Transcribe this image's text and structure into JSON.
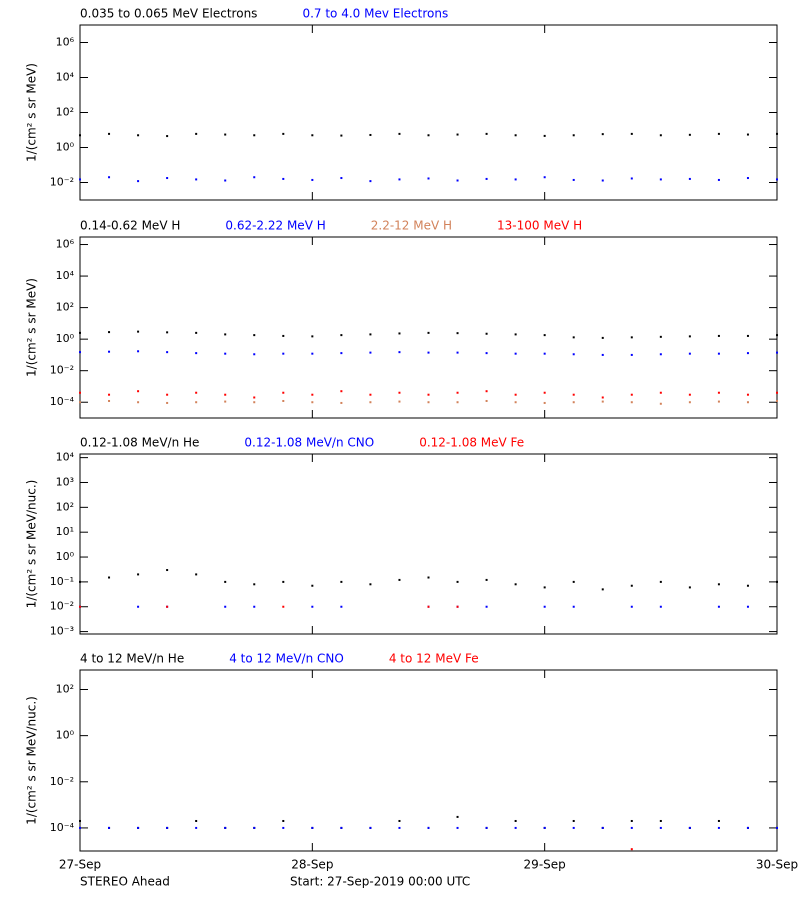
{
  "time_axis": {
    "xlim": [
      0,
      72
    ],
    "xticks": [
      {
        "value": 0,
        "label": "27-Sep"
      },
      {
        "value": 24,
        "label": "28-Sep"
      },
      {
        "value": 48,
        "label": "29-Sep"
      },
      {
        "value": 72,
        "label": "30-Sep"
      }
    ]
  },
  "footer": {
    "left": "STEREO Ahead",
    "center": "Start: 27-Sep-2019 00:00 UTC"
  },
  "chart_data": [
    {
      "type": "scatter",
      "ylog": true,
      "ylabel": "1/(cm² s sr MeV)",
      "ylim": [
        0.001,
        10000000
      ],
      "yticks": [
        {
          "value": 0.01,
          "label": "10⁻²"
        },
        {
          "value": 1,
          "label": "10⁰"
        },
        {
          "value": 100,
          "label": "10²"
        },
        {
          "value": 10000,
          "label": "10⁴"
        },
        {
          "value": 1000000,
          "label": "10⁶"
        }
      ],
      "x": [
        0,
        3,
        6,
        9,
        12,
        15,
        18,
        21,
        24,
        27,
        30,
        33,
        36,
        39,
        42,
        45,
        48,
        51,
        54,
        57,
        60,
        63,
        66,
        69,
        72
      ],
      "series": [
        {
          "name": "0.035 to 0.065 MeV Electrons",
          "color": "#000000",
          "values": [
            5,
            6,
            5,
            4.5,
            6,
            5.5,
            5,
            6,
            5,
            4.8,
            5.2,
            6,
            5,
            5.5,
            6,
            5,
            4.6,
            5,
            5.8,
            6,
            5,
            5.3,
            6,
            5.5,
            6
          ]
        },
        {
          "name": "0.7 to 4.0 Mev Electrons",
          "color": "#0000ff",
          "values": [
            0.015,
            0.02,
            0.012,
            0.018,
            0.015,
            0.013,
            0.02,
            0.016,
            0.014,
            0.018,
            0.012,
            0.015,
            0.017,
            0.013,
            0.016,
            0.015,
            0.02,
            0.014,
            0.013,
            0.017,
            0.015,
            0.016,
            0.014,
            0.018,
            0.015
          ]
        }
      ]
    },
    {
      "type": "scatter",
      "ylog": true,
      "ylabel": "1/(cm² s sr MeV)",
      "ylim": [
        1e-05,
        3000000
      ],
      "yticks": [
        {
          "value": 0.0001,
          "label": "10⁻⁴"
        },
        {
          "value": 0.01,
          "label": "10⁻²"
        },
        {
          "value": 1,
          "label": "10⁰"
        },
        {
          "value": 100,
          "label": "10²"
        },
        {
          "value": 10000,
          "label": "10⁴"
        },
        {
          "value": 1000000,
          "label": "10⁶"
        }
      ],
      "x": [
        0,
        3,
        6,
        9,
        12,
        15,
        18,
        21,
        24,
        27,
        30,
        33,
        36,
        39,
        42,
        45,
        48,
        51,
        54,
        57,
        60,
        63,
        66,
        69,
        72
      ],
      "series": [
        {
          "name": "0.14-0.62 MeV H",
          "color": "#000000",
          "values": [
            2.5,
            2.8,
            3,
            2.7,
            2.5,
            2,
            1.8,
            1.6,
            1.5,
            1.8,
            2,
            2.3,
            2.5,
            2.4,
            2.2,
            2,
            1.8,
            1.3,
            1.2,
            1.3,
            1.4,
            1.5,
            1.6,
            1.6,
            1.8
          ]
        },
        {
          "name": "0.62-2.22 MeV H",
          "color": "#0000ff",
          "values": [
            0.15,
            0.16,
            0.17,
            0.15,
            0.13,
            0.12,
            0.11,
            0.12,
            0.12,
            0.13,
            0.14,
            0.15,
            0.14,
            0.14,
            0.13,
            0.12,
            0.12,
            0.11,
            0.1,
            0.1,
            0.11,
            0.12,
            0.12,
            0.13,
            0.14
          ]
        },
        {
          "name": "2.2-12 MeV H",
          "color": "#d2825a",
          "values": [
            0.0001,
            0.00012,
            0.0001,
            9e-05,
            0.0001,
            0.00011,
            0.0001,
            0.00012,
            0.0001,
            9e-05,
            0.0001,
            0.00011,
            0.0001,
            0.0001,
            0.00012,
            0.0001,
            9e-05,
            0.0001,
            0.00011,
            0.0001,
            8e-05,
            0.0001,
            0.00011,
            0.0001,
            0.00012
          ]
        },
        {
          "name": "13-100 MeV H",
          "color": "#ff0000",
          "values": [
            0.0004,
            0.0003,
            0.0005,
            0.0003,
            0.0004,
            0.0003,
            0.0002,
            0.0004,
            0.0003,
            0.0005,
            0.0003,
            0.0004,
            0.0003,
            0.0004,
            0.0005,
            0.0003,
            0.0004,
            0.0003,
            0.0002,
            0.0003,
            0.0004,
            0.0003,
            0.0004,
            0.0003,
            0.0004
          ]
        }
      ]
    },
    {
      "type": "scatter",
      "ylog": true,
      "ylabel": "1/(cm² s sr MeV/nuc.)",
      "ylim": [
        0.0008,
        14000
      ],
      "yticks": [
        {
          "value": 0.001,
          "label": "10⁻³"
        },
        {
          "value": 0.01,
          "label": "10⁻²"
        },
        {
          "value": 0.1,
          "label": "10⁻¹"
        },
        {
          "value": 1,
          "label": "10⁰"
        },
        {
          "value": 10,
          "label": "10¹"
        },
        {
          "value": 100,
          "label": "10²"
        },
        {
          "value": 1000,
          "label": "10³"
        },
        {
          "value": 10000,
          "label": "10⁴"
        }
      ],
      "x": [
        0,
        3,
        6,
        9,
        12,
        15,
        18,
        21,
        24,
        27,
        30,
        33,
        36,
        39,
        42,
        45,
        48,
        51,
        54,
        57,
        60,
        63,
        66,
        69,
        72
      ],
      "series": [
        {
          "name": "0.12-1.08 MeV/n He",
          "color": "#000000",
          "values": [
            0.1,
            0.15,
            0.2,
            0.3,
            0.2,
            0.1,
            0.08,
            0.1,
            0.07,
            0.1,
            0.08,
            0.12,
            0.15,
            0.1,
            0.12,
            0.08,
            0.06,
            0.1,
            0.05,
            0.07,
            0.1,
            0.06,
            0.08,
            0.07,
            0.1
          ]
        },
        {
          "name": "0.12-1.08 MeV/n CNO",
          "color": "#0000ff",
          "values": [
            0.01,
            null,
            0.01,
            0.01,
            null,
            0.01,
            0.01,
            null,
            0.01,
            0.01,
            null,
            null,
            0.01,
            0.01,
            0.01,
            null,
            0.01,
            0.01,
            null,
            0.01,
            0.01,
            null,
            0.01,
            0.01,
            null
          ]
        },
        {
          "name": "0.12-1.08 MeV Fe",
          "color": "#ff0000",
          "values": [
            0.01,
            null,
            null,
            0.01,
            null,
            null,
            null,
            0.01,
            null,
            null,
            null,
            null,
            0.01,
            0.01,
            null,
            null,
            null,
            null,
            null,
            null,
            null,
            null,
            null,
            null,
            null
          ]
        }
      ]
    },
    {
      "type": "scatter",
      "ylog": true,
      "ylabel": "1/(cm² s sr MeV/nuc.)",
      "ylim": [
        1e-05,
        700
      ],
      "yticks": [
        {
          "value": 0.0001,
          "label": "10⁻⁴"
        },
        {
          "value": 0.01,
          "label": "10⁻²"
        },
        {
          "value": 1,
          "label": "10⁰"
        },
        {
          "value": 100,
          "label": "10²"
        }
      ],
      "x": [
        0,
        3,
        6,
        9,
        12,
        15,
        18,
        21,
        24,
        27,
        30,
        33,
        36,
        39,
        42,
        45,
        48,
        51,
        54,
        57,
        60,
        63,
        66,
        69,
        72
      ],
      "series": [
        {
          "name": "4 to 12 MeV/n He",
          "color": "#000000",
          "values": [
            0.0002,
            0.0001,
            0.0001,
            0.0001,
            0.0002,
            0.0001,
            0.0001,
            0.0002,
            0.0001,
            0.0001,
            0.0001,
            0.0002,
            0.0001,
            0.0003,
            0.0001,
            0.0002,
            0.0001,
            0.0002,
            0.0001,
            0.0002,
            0.0002,
            0.0001,
            0.0002,
            0.0001,
            0.0001
          ]
        },
        {
          "name": "4 to 12 MeV/n CNO",
          "color": "#0000ff",
          "values": [
            0.0001,
            0.0001,
            0.0001,
            0.0001,
            0.0001,
            0.0001,
            0.0001,
            0.0001,
            0.0001,
            0.0001,
            0.0001,
            0.0001,
            0.0001,
            0.0001,
            0.0001,
            0.0001,
            0.0001,
            0.0001,
            0.0001,
            0.0001,
            0.0001,
            0.0001,
            0.0001,
            0.0001,
            0.0001
          ]
        },
        {
          "name": "4 to 12 MeV Fe",
          "color": "#ff0000",
          "values": [
            null,
            null,
            null,
            null,
            null,
            null,
            null,
            null,
            null,
            null,
            null,
            null,
            null,
            null,
            null,
            null,
            null,
            null,
            null,
            1.2e-05,
            null,
            null,
            null,
            null,
            null
          ]
        }
      ]
    }
  ]
}
